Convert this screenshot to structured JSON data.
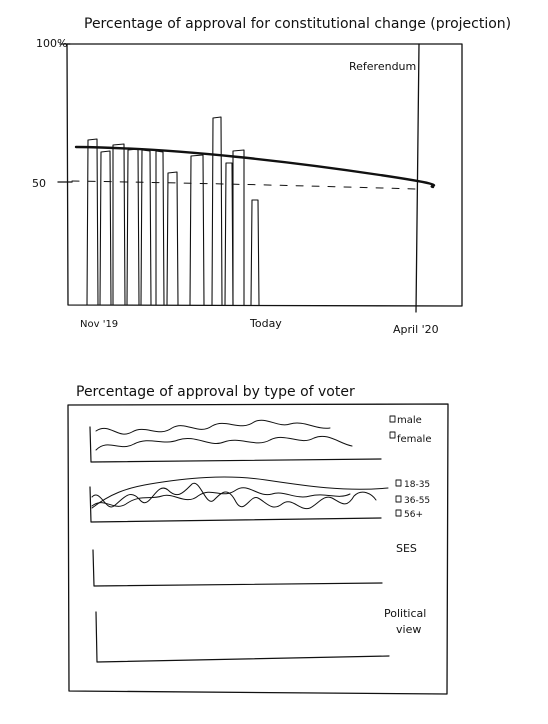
{
  "top_chart": {
    "title": "Percentage of approval for constitutional change (projection)",
    "y_top_label": "100%",
    "y_mid_label": "50",
    "annotation": "Referendum",
    "x_labels": [
      "Nov '19",
      "Today",
      "April '20"
    ]
  },
  "bottom_chart": {
    "title": "Percentage of approval by type of voter",
    "panels": [
      {
        "legend": [
          "male",
          "female"
        ]
      },
      {
        "legend": [
          "18-35",
          "36-55",
          "56+"
        ]
      },
      {
        "label": "SES"
      },
      {
        "label_lines": [
          "Political",
          "view"
        ]
      }
    ]
  },
  "chart_data": {
    "type": "bar",
    "x": [
      "Nov '19",
      "Today",
      "April '20"
    ],
    "ylim": [
      0,
      100
    ],
    "reference_line": 50
  }
}
